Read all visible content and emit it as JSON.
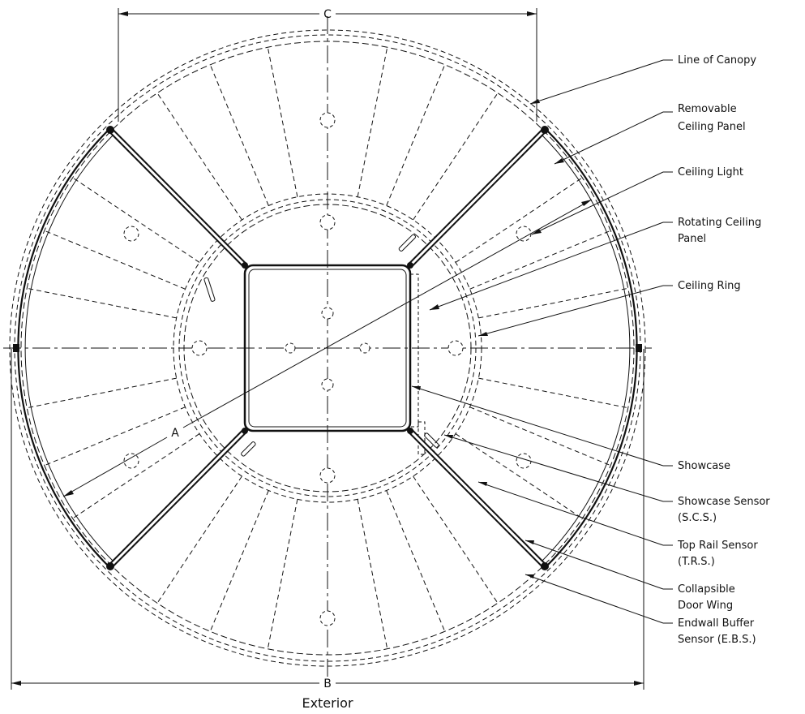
{
  "drawing": {
    "caption": "Exterior",
    "dimensions": {
      "overall_width": "B",
      "span": "C",
      "diameter": "A"
    },
    "callouts": [
      {
        "id": "line-of-canopy",
        "lines": [
          "Line of Canopy"
        ]
      },
      {
        "id": "removable-ceiling-panel",
        "lines": [
          "Removable",
          "Ceiling Panel"
        ]
      },
      {
        "id": "ceiling-light",
        "lines": [
          "Ceiling Light"
        ]
      },
      {
        "id": "rotating-ceiling-panel",
        "lines": [
          "Rotating Ceiling",
          "Panel"
        ]
      },
      {
        "id": "ceiling-ring",
        "lines": [
          "Ceiling Ring"
        ]
      },
      {
        "id": "showcase",
        "lines": [
          "Showcase"
        ]
      },
      {
        "id": "showcase-sensor",
        "lines": [
          "Showcase Sensor",
          "(S.C.S.)"
        ]
      },
      {
        "id": "top-rail-sensor",
        "lines": [
          "Top Rail Sensor",
          "(T.R.S.)"
        ]
      },
      {
        "id": "collapsible-door-wing",
        "lines": [
          "Collapsible",
          "Door Wing"
        ]
      },
      {
        "id": "endwall-buffer-sensor",
        "lines": [
          "Endwall Buffer",
          "Sensor (E.B.S.)"
        ]
      }
    ]
  }
}
